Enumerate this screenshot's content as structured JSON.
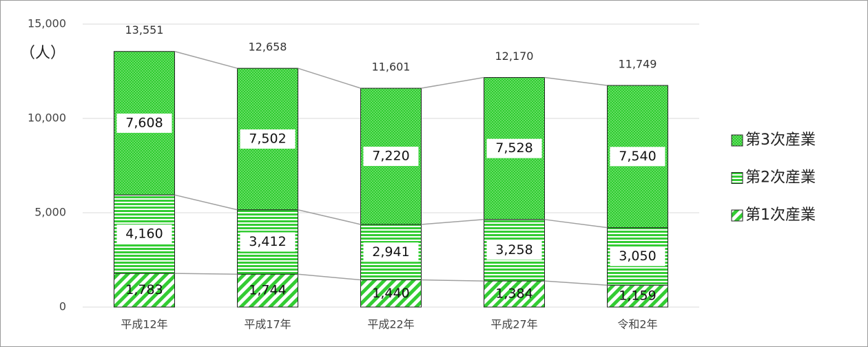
{
  "chart_data": {
    "type": "stacked_bar",
    "y_label": "（人）",
    "categories": [
      "平成12年",
      "平成17年",
      "平成22年",
      "平成27年",
      "令和2年"
    ],
    "series": [
      {
        "name": "第1次産業",
        "color": "#33cc33",
        "pattern": "diagonal",
        "values": [
          1783,
          1744,
          1440,
          1384,
          1159
        ],
        "value_labels": [
          "1,783",
          "1,744",
          "1,440",
          "1,384",
          "1,159"
        ]
      },
      {
        "name": "第2次産業",
        "color": "#33cc33",
        "pattern": "horizontal",
        "values": [
          4160,
          3412,
          2941,
          3258,
          3050
        ],
        "value_labels": [
          "4,160",
          "3,412",
          "2,941",
          "3,258",
          "3,050"
        ]
      },
      {
        "name": "第3次産業",
        "color": "#33cc33",
        "pattern": "dots",
        "values": [
          7608,
          7502,
          7220,
          7528,
          7540
        ],
        "value_labels": [
          "7,608",
          "7,502",
          "7,220",
          "7,528",
          "7,540"
        ]
      }
    ],
    "totals": [
      13551,
      12658,
      11601,
      12170,
      11749
    ],
    "total_labels": [
      "13,551",
      "12,658",
      "11,601",
      "12,170",
      "11,749"
    ],
    "ylim": [
      0,
      15000
    ],
    "yticks": [
      0,
      {
        "value": 5000,
        "label": "5,000"
      },
      {
        "value": 10000,
        "label": "10,000"
      },
      {
        "value": 15000,
        "label": "15,000"
      }
    ],
    "grid": true,
    "legend": "right"
  }
}
